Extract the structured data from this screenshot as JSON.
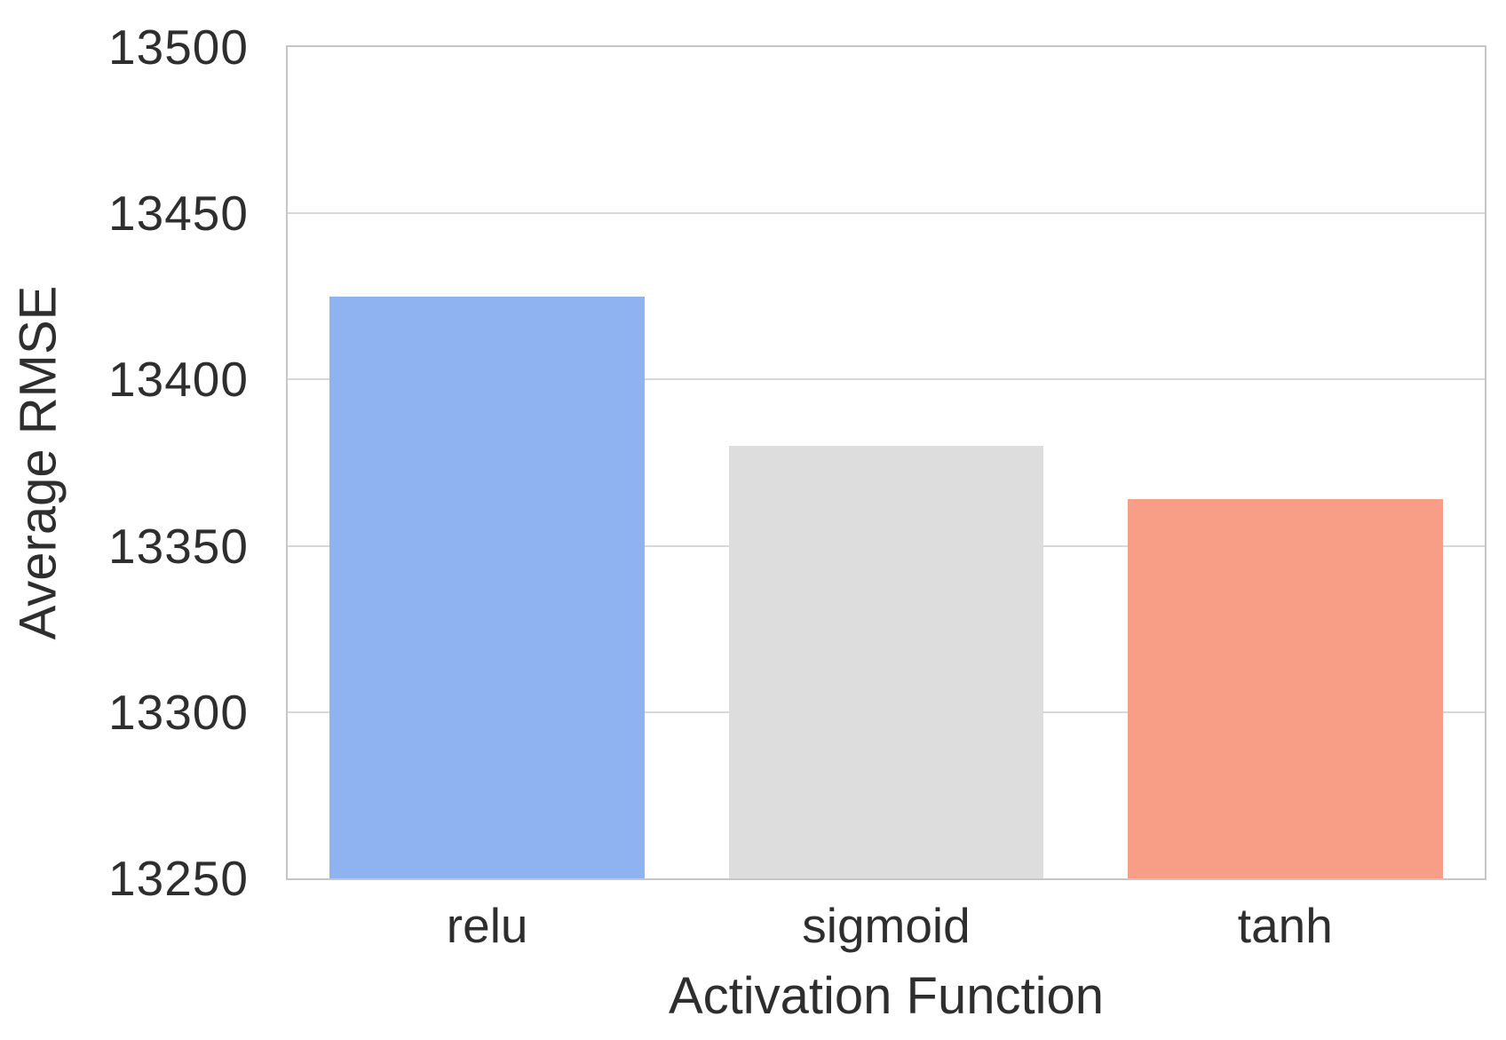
{
  "chart_data": {
    "type": "bar",
    "title": "",
    "categories": [
      "relu",
      "sigmoid",
      "tanh"
    ],
    "values": [
      13425,
      13380,
      13364
    ],
    "xlabel": "Activation Function",
    "ylabel": "Average RMSE",
    "ylim": [
      13250,
      13500
    ],
    "yticks": [
      13250,
      13300,
      13350,
      13400,
      13450,
      13500
    ],
    "grid": "horizontal",
    "legend": "none",
    "bar_width_fraction": 0.79,
    "bar_colors": [
      "#8FB2F1",
      "#DDDDDD",
      "#F89E86"
    ]
  },
  "style": {
    "background_color": "#FFFFFF",
    "grid_color": "#D8D8D8",
    "border_color": "#C6C6C6",
    "text_color": "#2E2E2E"
  }
}
